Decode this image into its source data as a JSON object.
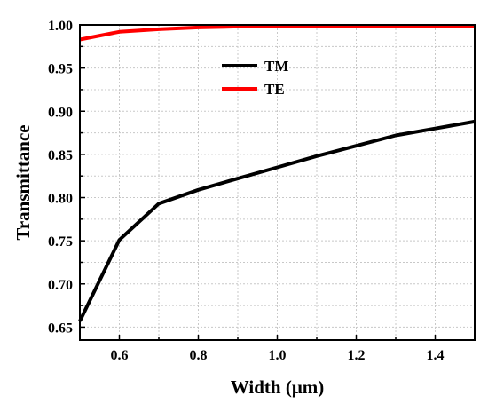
{
  "chart_data": {
    "type": "line",
    "xlabel": "Width (μm)",
    "ylabel": "Transmittance",
    "xlim": [
      0.5,
      1.5
    ],
    "ylim": [
      0.635,
      1.0
    ],
    "grid": true,
    "legend_position": "top-center",
    "x_ticks": [
      "0.6",
      "0.8",
      "1.0",
      "1.2",
      "1.4"
    ],
    "y_ticks": [
      "0.65",
      "0.70",
      "0.75",
      "0.80",
      "0.85",
      "0.90",
      "0.95",
      "1.00"
    ],
    "series": [
      {
        "name": "TM",
        "color": "#000000",
        "x": [
          0.5,
          0.6,
          0.7,
          0.8,
          0.9,
          1.0,
          1.1,
          1.2,
          1.3,
          1.4,
          1.5
        ],
        "y": [
          0.657,
          0.751,
          0.793,
          0.809,
          0.822,
          0.835,
          0.848,
          0.86,
          0.872,
          0.88,
          0.888
        ]
      },
      {
        "name": "TE",
        "color": "#ff0000",
        "x": [
          0.5,
          0.6,
          0.7,
          0.8,
          0.9,
          1.0,
          1.1,
          1.2,
          1.3,
          1.4,
          1.5
        ],
        "y": [
          0.983,
          0.992,
          0.995,
          0.997,
          0.998,
          0.998,
          0.998,
          0.998,
          0.998,
          0.998,
          0.998
        ]
      }
    ]
  }
}
